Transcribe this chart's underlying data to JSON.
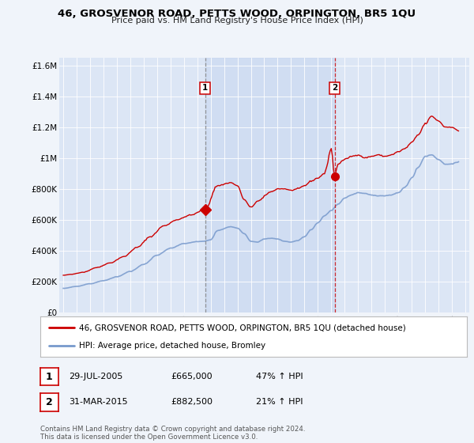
{
  "title": "46, GROSVENOR ROAD, PETTS WOOD, ORPINGTON, BR5 1QU",
  "subtitle": "Price paid vs. HM Land Registry's House Price Index (HPI)",
  "ylim": [
    0,
    1650000
  ],
  "yticks": [
    0,
    200000,
    400000,
    600000,
    800000,
    1000000,
    1200000,
    1400000,
    1600000
  ],
  "ytick_labels": [
    "£0",
    "£200K",
    "£400K",
    "£600K",
    "£800K",
    "£1M",
    "£1.2M",
    "£1.4M",
    "£1.6M"
  ],
  "background_color": "#f0f4fa",
  "plot_bg_color": "#dce6f5",
  "shade_color": "#c8d8f0",
  "red_color": "#cc0000",
  "blue_color": "#7799cc",
  "vline1_x": 2005.58,
  "vline2_x": 2015.25,
  "marker1_y": 665000,
  "marker2_y": 882500,
  "legend_line1": "46, GROSVENOR ROAD, PETTS WOOD, ORPINGTON, BR5 1QU (detached house)",
  "legend_line2": "HPI: Average price, detached house, Bromley",
  "table_row1": [
    "1",
    "29-JUL-2005",
    "£665,000",
    "47% ↑ HPI"
  ],
  "table_row2": [
    "2",
    "31-MAR-2015",
    "£882,500",
    "21% ↑ HPI"
  ],
  "footer": "Contains HM Land Registry data © Crown copyright and database right 2024.\nThis data is licensed under the Open Government Licence v3.0.",
  "xlim_left": 1994.7,
  "xlim_right": 2025.3
}
